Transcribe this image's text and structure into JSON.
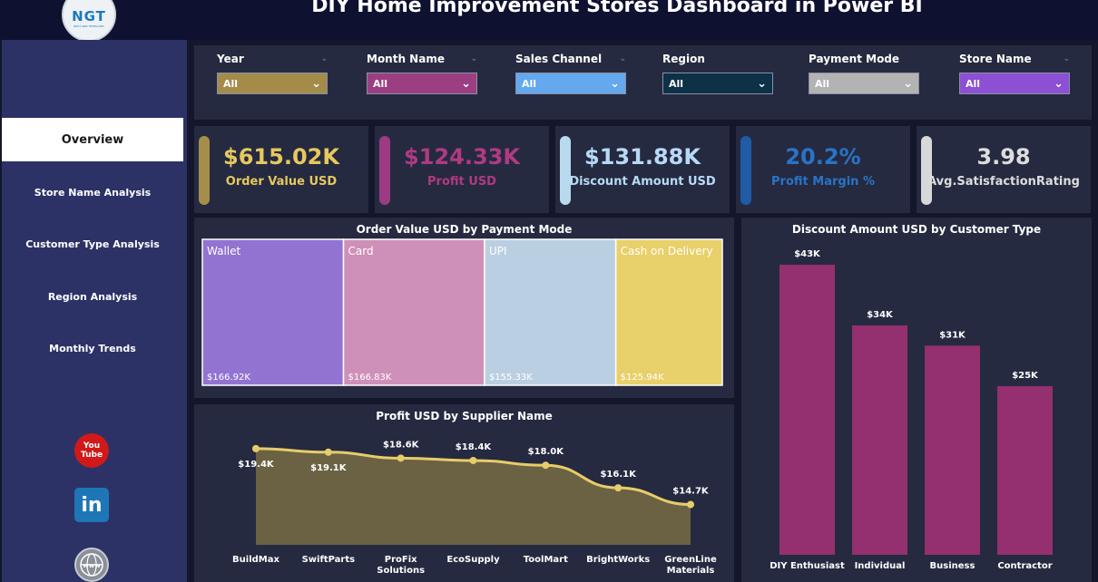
{
  "header": {
    "title": "DIY Home Improvement Stores Dashboard in Power BI",
    "logo_text": "NGT",
    "logo_sub": "NEXT GEN TEMPLATES"
  },
  "sidebar": {
    "items": [
      {
        "label": "Overview",
        "active": true
      },
      {
        "label": "Store Name Analysis",
        "active": false
      },
      {
        "label": "Customer Type Analysis",
        "active": false
      },
      {
        "label": "Region Analysis",
        "active": false
      },
      {
        "label": "Monthly Trends",
        "active": false
      }
    ],
    "social": [
      {
        "icon": "youtube-icon",
        "text": "You Tube"
      },
      {
        "icon": "linkedin-icon",
        "text": "in"
      },
      {
        "icon": "globe-icon",
        "text": "www"
      }
    ]
  },
  "filters": [
    {
      "label": "Year",
      "value": "All",
      "color": "#a48b4a"
    },
    {
      "label": "Month Name",
      "value": "All",
      "color": "#9c3f82"
    },
    {
      "label": "Sales Channel",
      "value": "All",
      "color": "#64a8ee"
    },
    {
      "label": "Region",
      "value": "All",
      "color": "#0d3147"
    },
    {
      "label": "Payment Mode",
      "value": "All",
      "color": "#b3b3b3"
    },
    {
      "label": "Store Name",
      "value": "All",
      "color": "#8d4fd3"
    }
  ],
  "kpis": [
    {
      "value": "$615.02K",
      "label": "Order Value USD",
      "color": "#e6c85f",
      "pill": "#a58e4c"
    },
    {
      "value": "$124.33K",
      "label": "Profit USD",
      "color": "#b03a82",
      "pill": "#9c3a82"
    },
    {
      "value": "$131.88K",
      "label": "Discount Amount USD",
      "color": "#b8d9f5",
      "pill": "#b8d9ee"
    },
    {
      "value": "20.2%",
      "label": "Profit Margin %",
      "color": "#2874c6",
      "pill": "#1f5ba6"
    },
    {
      "value": "3.98",
      "label": "Avg.SatisfactionRating",
      "color": "#dddddd",
      "pill": "#d8d8d8"
    }
  ],
  "chart_data": [
    {
      "type": "treemap",
      "title": "Order Value USD by Payment Mode",
      "categories": [
        "Wallet",
        "Card",
        "UPI",
        "Cash on Delivery"
      ],
      "values": [
        166.92,
        166.83,
        155.33,
        125.94
      ],
      "value_labels": [
        "$166.92K",
        "$166.83K",
        "$155.33K",
        "$125.94K"
      ],
      "colors": [
        "#9273d1",
        "#ce90b8",
        "#bbcfe2",
        "#e8d06a"
      ]
    },
    {
      "type": "area",
      "title": "Profit USD by Supplier Name",
      "categories": [
        "BuildMax",
        "SwiftParts",
        "ProFix Solutions",
        "EcoSupply",
        "ToolMart",
        "BrightWorks",
        "GreenLine Materials"
      ],
      "values": [
        19.4,
        19.1,
        18.6,
        18.4,
        18.0,
        16.1,
        14.7
      ],
      "value_labels": [
        "$19.4K",
        "$19.1K",
        "$18.6K",
        "$18.4K",
        "$18.0K",
        "$16.1K",
        "$14.7K"
      ],
      "color": "#e8cc6a",
      "fill": "#6b6244"
    },
    {
      "type": "bar",
      "title": "Discount Amount USD by Customer Type",
      "categories": [
        "DIY Enthusiast",
        "Individual",
        "Business",
        "Contractor"
      ],
      "values": [
        43,
        34,
        31,
        25
      ],
      "value_labels": [
        "$43K",
        "$34K",
        "$31K",
        "$25K"
      ],
      "color": "#94306f"
    }
  ]
}
